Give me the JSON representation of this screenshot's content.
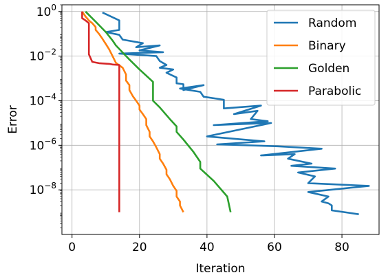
{
  "chart_data": {
    "type": "line",
    "xlabel": "Iteration",
    "ylabel": "Error",
    "xlim": [
      -3,
      91
    ],
    "ylim": [
      1e-10,
      2.0
    ],
    "yscale": "log",
    "grid": true,
    "legend_position": "top-right",
    "x_ticks": [
      {
        "value": 0,
        "label": "0"
      },
      {
        "value": 20,
        "label": "20"
      },
      {
        "value": 40,
        "label": "40"
      },
      {
        "value": 60,
        "label": "60"
      },
      {
        "value": 80,
        "label": "80"
      }
    ],
    "y_ticks": [
      {
        "exp": 0,
        "base": "10",
        "sup": "0"
      },
      {
        "exp": -2,
        "base": "10",
        "sup": "−2"
      },
      {
        "exp": -4,
        "base": "10",
        "sup": "−4"
      },
      {
        "exp": -6,
        "base": "10",
        "sup": "−6"
      },
      {
        "exp": -8,
        "base": "10",
        "sup": "−8"
      }
    ],
    "series": [
      {
        "name": "Random",
        "color": "#1f77b4",
        "points": [
          [
            9,
            0.9
          ],
          [
            14,
            0.4
          ],
          [
            14,
            0.15
          ],
          [
            10,
            0.12
          ],
          [
            14,
            0.09
          ],
          [
            15,
            0.055
          ],
          [
            21,
            0.038
          ],
          [
            19,
            0.025
          ],
          [
            26,
            0.03
          ],
          [
            20,
            0.018
          ],
          [
            27,
            0.015
          ],
          [
            14,
            0.013
          ],
          [
            25,
            0.01
          ],
          [
            26,
            0.006
          ],
          [
            28,
            0.004
          ],
          [
            26,
            0.003
          ],
          [
            30,
            0.0025
          ],
          [
            28,
            0.0018
          ],
          [
            31,
            0.0011
          ],
          [
            31,
            0.0006
          ],
          [
            33,
            0.00055
          ],
          [
            33,
            0.0003
          ],
          [
            39,
            0.0005
          ],
          [
            32,
            0.00035
          ],
          [
            38,
            0.00025
          ],
          [
            39,
            0.00015
          ],
          [
            45,
            0.00011
          ],
          [
            45,
            4.5e-05
          ],
          [
            56,
            6e-05
          ],
          [
            48,
            2.5e-05
          ],
          [
            55,
            3.5e-05
          ],
          [
            53,
            1.5e-05
          ],
          [
            58,
            1.2e-05
          ],
          [
            42,
            8e-06
          ],
          [
            59,
            1e-05
          ],
          [
            40,
            2.5e-06
          ],
          [
            57,
            1.5e-06
          ],
          [
            43,
            1.1e-06
          ],
          [
            61,
            9e-07
          ],
          [
            74,
            7e-07
          ],
          [
            56,
            3.5e-07
          ],
          [
            66,
            4e-07
          ],
          [
            64,
            2.5e-07
          ],
          [
            71,
            1.5e-07
          ],
          [
            65,
            1.2e-07
          ],
          [
            78,
            9e-08
          ],
          [
            67,
            6e-08
          ],
          [
            72,
            4e-08
          ],
          [
            70,
            2e-08
          ],
          [
            88,
            1.5e-08
          ],
          [
            70,
            8e-09
          ],
          [
            76,
            5e-09
          ],
          [
            74,
            3e-09
          ],
          [
            76,
            2.5e-09
          ],
          [
            77,
            2e-09
          ],
          [
            77,
            1.2e-09
          ],
          [
            85,
            8e-10
          ]
        ]
      },
      {
        "name": "Binary",
        "color": "#ff7f0e",
        "points": [
          [
            3,
            1.0
          ],
          [
            4,
            0.6
          ],
          [
            5,
            0.4
          ],
          [
            6,
            0.3
          ],
          [
            7,
            0.2
          ],
          [
            7,
            0.15
          ],
          [
            8,
            0.1
          ],
          [
            9,
            0.06
          ],
          [
            10,
            0.035
          ],
          [
            11,
            0.02
          ],
          [
            12,
            0.01
          ],
          [
            13,
            0.005
          ],
          [
            15,
            0.003
          ],
          [
            16,
            0.0015
          ],
          [
            16,
            0.0008
          ],
          [
            17,
            0.0005
          ],
          [
            17,
            0.0003
          ],
          [
            18,
            0.00016
          ],
          [
            19,
            0.0001
          ],
          [
            20,
            6e-05
          ],
          [
            20,
            4e-05
          ],
          [
            21,
            2.5e-05
          ],
          [
            22,
            1.5e-05
          ],
          [
            22,
            8e-06
          ],
          [
            23,
            4e-06
          ],
          [
            23,
            2.5e-06
          ],
          [
            24,
            1.5e-06
          ],
          [
            25,
            8e-07
          ],
          [
            26,
            4e-07
          ],
          [
            26,
            2.5e-07
          ],
          [
            27,
            1.5e-07
          ],
          [
            28,
            8e-08
          ],
          [
            28,
            5e-08
          ],
          [
            29,
            3e-08
          ],
          [
            30,
            1.5e-08
          ],
          [
            31,
            9e-09
          ],
          [
            31,
            5e-09
          ],
          [
            32,
            3e-09
          ],
          [
            32,
            2e-09
          ],
          [
            33,
            1e-09
          ]
        ]
      },
      {
        "name": "Golden",
        "color": "#2ca02c",
        "points": [
          [
            4,
            1.0
          ],
          [
            7,
            0.35
          ],
          [
            10,
            0.12
          ],
          [
            12,
            0.05
          ],
          [
            13,
            0.03
          ],
          [
            17,
            0.007
          ],
          [
            20,
            0.0025
          ],
          [
            24,
            0.0007
          ],
          [
            24,
            0.0001
          ],
          [
            26,
            5e-05
          ],
          [
            29,
            1.5e-05
          ],
          [
            31,
            7e-06
          ],
          [
            31,
            4e-06
          ],
          [
            33,
            1.8e-06
          ],
          [
            36,
            5e-07
          ],
          [
            38,
            1.8e-07
          ],
          [
            38,
            9e-08
          ],
          [
            42,
            2.5e-08
          ],
          [
            46,
            5e-09
          ],
          [
            47,
            1e-09
          ]
        ]
      },
      {
        "name": "Parabolic",
        "color": "#d62728",
        "points": [
          [
            3,
            1.0
          ],
          [
            3,
            0.5
          ],
          [
            4,
            0.4
          ],
          [
            5,
            0.3
          ],
          [
            5,
            0.15
          ],
          [
            5,
            0.012
          ],
          [
            6,
            0.0055
          ],
          [
            8,
            0.0048
          ],
          [
            11,
            0.0045
          ],
          [
            12,
            0.0042
          ],
          [
            14,
            0.004
          ],
          [
            14,
            1e-09
          ]
        ]
      }
    ]
  }
}
